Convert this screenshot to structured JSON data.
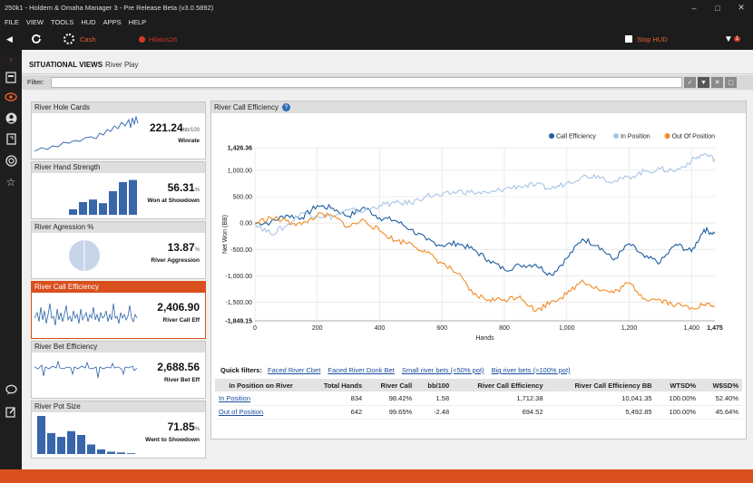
{
  "window": {
    "title": "250k1 - Holdem & Omaha Manager 3 - Pre Release Beta (v3.0.5892)"
  },
  "menu": [
    "FILE",
    "VIEW",
    "TOOLS",
    "HUD",
    "APPS",
    "HELP"
  ],
  "toolbar": {
    "cash_label": "Cash",
    "player_label": "Hilatos26",
    "stop_hud_label": "Stop HUD",
    "filter_count": "1"
  },
  "view": {
    "title": "SITUATIONAL VIEWS",
    "subtitle": "River Play",
    "filter_label": "Filter:",
    "filter_value": ""
  },
  "panels": [
    {
      "title": "River Hole Cards",
      "value": "221.24",
      "unit": "bb/100",
      "label": "Winrate"
    },
    {
      "title": "River Hand Strength",
      "value": "56.31",
      "unit": "%",
      "label": "Won at Showdown",
      "bars": [
        0.15,
        0.35,
        0.42,
        0.32,
        0.65,
        0.9,
        0.96,
        0.68
      ]
    },
    {
      "title": "River Agression %",
      "value": "13.87",
      "unit": "%",
      "label": "River Aggression"
    },
    {
      "title": "River Call Efficiency",
      "value": "2,406.90",
      "unit": "",
      "label": "River Call Eff"
    },
    {
      "title": "River Bet Efficiency",
      "value": "2,688.56",
      "unit": "",
      "label": "River Bet Eff"
    },
    {
      "title": "River Pot Size",
      "value": "71.85",
      "unit": "%",
      "label": "Went to Showdown",
      "bars": [
        1.0,
        0.55,
        0.45,
        0.6,
        0.5,
        0.25,
        0.12,
        0.06,
        0.04,
        0.02
      ]
    }
  ],
  "chart_data": {
    "type": "line",
    "title": "River Call Efficiency",
    "xlabel": "Hands",
    "ylabel": "Net Won (BB)",
    "xlim": [
      0,
      1475
    ],
    "ylim": [
      -1849.15,
      1426.36
    ],
    "x_ticks": [
      "0",
      "200",
      "400",
      "600",
      "800",
      "1,000",
      "1,200",
      "1,400",
      "1,475"
    ],
    "y_ticks": [
      "1,426.36",
      "1,000.00",
      "500.00",
      "0.00",
      "-500.00",
      "-1,000.00",
      "-1,500.00",
      "-1,849.15"
    ],
    "legend_position": "top-right",
    "grid": true,
    "series": [
      {
        "name": "Call Efficiency",
        "color": "#1f5fa0",
        "x": [
          0,
          50,
          100,
          150,
          200,
          250,
          300,
          350,
          400,
          450,
          500,
          550,
          600,
          650,
          700,
          750,
          800,
          850,
          900,
          950,
          1000,
          1050,
          1100,
          1150,
          1200,
          1250,
          1300,
          1350,
          1400,
          1440,
          1475
        ],
        "y": [
          0,
          10,
          150,
          100,
          330,
          280,
          130,
          300,
          100,
          50,
          -120,
          -320,
          -420,
          -380,
          -500,
          -700,
          -880,
          -800,
          -780,
          -980,
          -670,
          -300,
          -420,
          -700,
          -390,
          -650,
          -740,
          -400,
          -540,
          -120,
          -200
        ]
      },
      {
        "name": "In Position",
        "color": "#a9c5e6",
        "x": [
          0,
          50,
          100,
          150,
          200,
          250,
          300,
          350,
          400,
          450,
          500,
          550,
          600,
          650,
          700,
          750,
          800,
          850,
          900,
          950,
          1000,
          1050,
          1100,
          1150,
          1200,
          1250,
          1300,
          1350,
          1400,
          1440,
          1475
        ],
        "y": [
          0,
          -200,
          -60,
          200,
          140,
          120,
          240,
          220,
          340,
          380,
          380,
          520,
          520,
          600,
          580,
          560,
          650,
          700,
          720,
          650,
          760,
          880,
          900,
          780,
          870,
          980,
          1020,
          990,
          1180,
          1310,
          1210
        ]
      },
      {
        "name": "Out Of Position",
        "color": "#f28c28",
        "x": [
          0,
          50,
          100,
          150,
          200,
          250,
          300,
          350,
          400,
          450,
          500,
          550,
          600,
          650,
          700,
          750,
          800,
          850,
          900,
          950,
          1000,
          1050,
          1100,
          1150,
          1200,
          1250,
          1300,
          1350,
          1400,
          1440,
          1475
        ],
        "y": [
          0,
          100,
          40,
          -30,
          150,
          130,
          -70,
          60,
          -150,
          -330,
          -380,
          -560,
          -760,
          -960,
          -1350,
          -1450,
          -1450,
          -1380,
          -1670,
          -1480,
          -1350,
          -1080,
          -1250,
          -1320,
          -1130,
          -1430,
          -1450,
          -1550,
          -1600,
          -1540,
          -1570
        ]
      }
    ]
  },
  "quick_filters": {
    "label": "Quick filters:",
    "items": [
      "Faced River Cbet",
      "Faced River Donk Bet",
      "Small river bets (<50% pot)",
      "Big river bets (>100% pot)"
    ]
  },
  "table": {
    "headers": [
      "In Position on River",
      "Total Hands",
      "River Call",
      "bb/100",
      "River Call Efficiency",
      "River Call Efficiency BB",
      "WTSD%",
      "W$SD%"
    ],
    "rows": [
      [
        "In Position",
        "834",
        "98.42%",
        "1.58",
        "1,712.38",
        "10,041.35",
        "100.00%",
        "52.40%"
      ],
      [
        "Out of Position",
        "642",
        "99.65%",
        "-2.48",
        "694.52",
        "5,492.85",
        "100.00%",
        "45.64%"
      ]
    ]
  }
}
